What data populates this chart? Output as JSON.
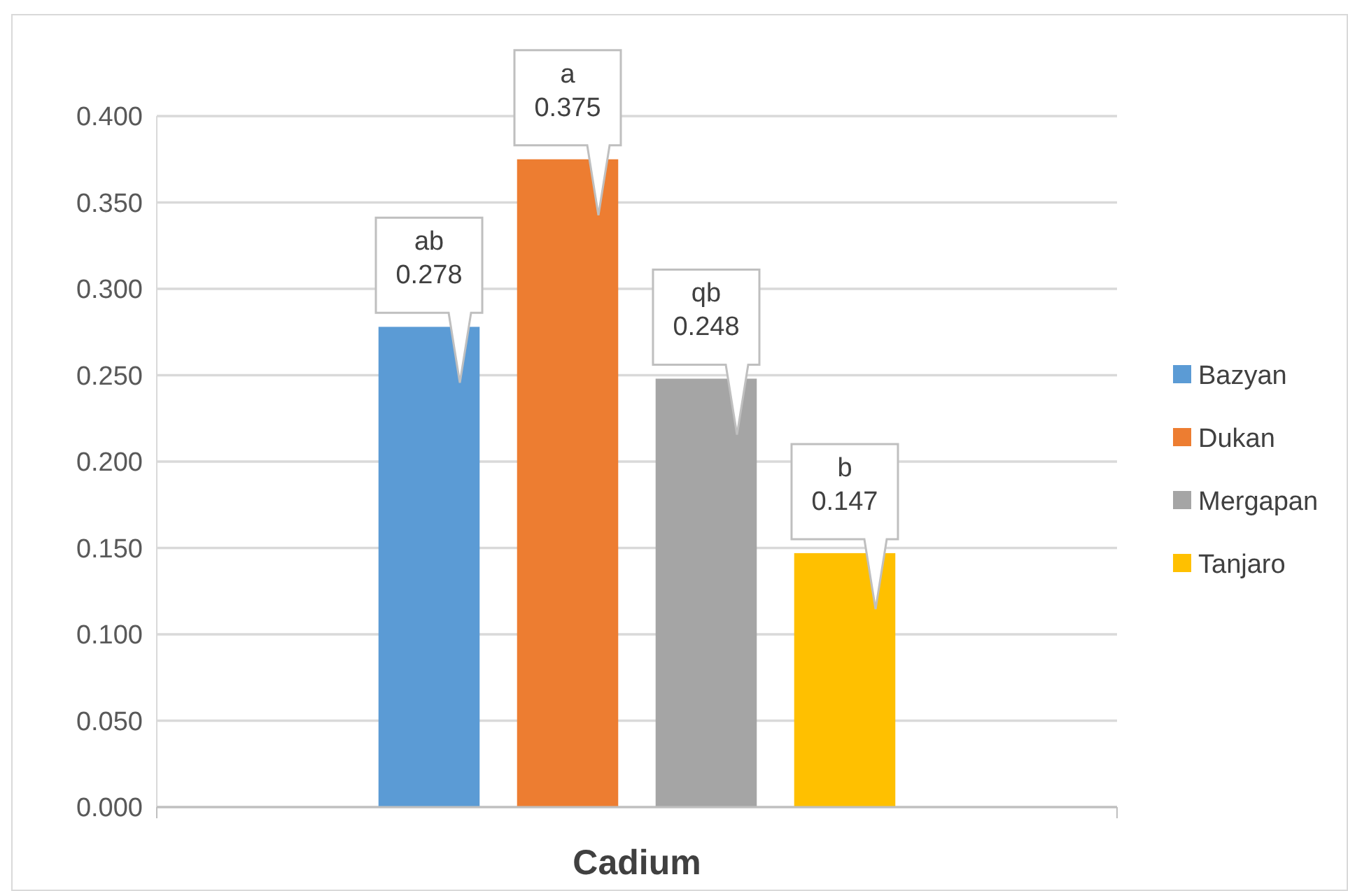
{
  "chart_data": {
    "type": "bar",
    "categories": [
      "Cadium"
    ],
    "series": [
      {
        "name": "Bazyan",
        "color": "#5b9bd5",
        "values": [
          0.278
        ],
        "value_labels": [
          "ab\n0.278"
        ]
      },
      {
        "name": "Dukan",
        "color": "#ed7d31",
        "values": [
          0.375
        ],
        "value_labels": [
          "a\n0.375"
        ]
      },
      {
        "name": "Mergapan",
        "color": "#a5a5a5",
        "values": [
          0.248
        ],
        "value_labels": [
          "qb\n0.248"
        ]
      },
      {
        "name": "Tanjaro",
        "color": "#ffc000",
        "values": [
          0.147
        ],
        "value_labels": [
          "b\n0.147"
        ]
      }
    ],
    "ylim": [
      0,
      0.4
    ],
    "yticks": [
      {
        "value": 0,
        "label": "0.000"
      },
      {
        "value": 0.05,
        "label": "0.050"
      },
      {
        "value": 0.1,
        "label": "0.100"
      },
      {
        "value": 0.15,
        "label": "0.150"
      },
      {
        "value": 0.2,
        "label": "0.200"
      },
      {
        "value": 0.25,
        "label": "0.250"
      },
      {
        "value": 0.3,
        "label": "0.300"
      },
      {
        "value": 0.35,
        "label": "0.350"
      },
      {
        "value": 0.4,
        "label": "0.400"
      }
    ],
    "grid": "y",
    "legend": "right"
  }
}
